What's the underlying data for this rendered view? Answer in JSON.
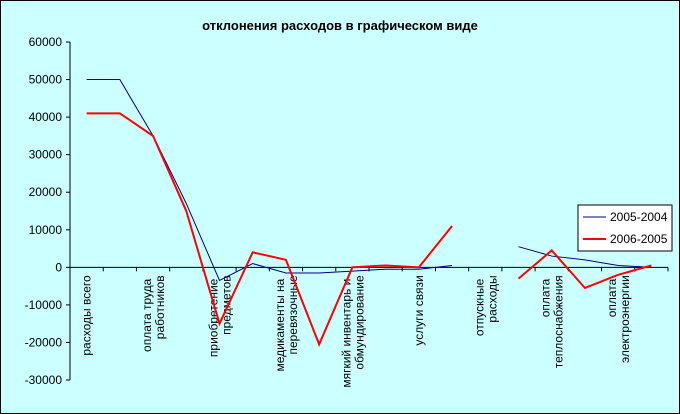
{
  "chart_data": {
    "type": "line",
    "title": "отклонения расходов в графическом виде",
    "categories": [
      "расходы всего",
      null,
      "оплата труда работников",
      null,
      "приобретение предметов",
      null,
      "медикаменты на перевязочные",
      null,
      "мягкий инвентарь и обмундирование",
      null,
      "услуги связи",
      null,
      "отпускные расходы",
      null,
      "оплата теплоснабжения",
      null,
      "оплата электроэнергии",
      null
    ],
    "series": [
      {
        "name": "2005-2004",
        "color": "#000080",
        "values": [
          50000,
          50000,
          35000,
          17000,
          -3500,
          1000,
          -1500,
          -1500,
          -1000,
          -500,
          -500,
          500,
          null,
          5500,
          3000,
          2000,
          500,
          0
        ]
      },
      {
        "name": "2006-2005",
        "color": "#ff0000",
        "values": [
          41000,
          41000,
          35000,
          15000,
          -15000,
          4000,
          2000,
          -20500,
          0,
          500,
          0,
          11000,
          null,
          -3000,
          4500,
          -5500,
          -2000,
          500
        ]
      }
    ],
    "ylim": [
      -30000,
      60000
    ],
    "yticks": [
      -30000,
      -20000,
      -10000,
      0,
      10000,
      20000,
      30000,
      40000,
      50000,
      60000
    ],
    "legend": "right"
  }
}
